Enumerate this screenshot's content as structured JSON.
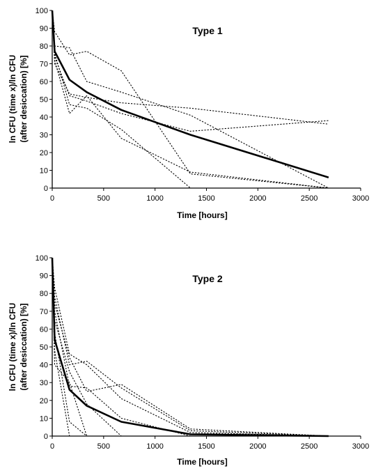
{
  "chart_data": [
    {
      "type": "line",
      "title": "Type 1",
      "xlabel": "Time [hours]",
      "ylabel": "ln CFU (time x)/ln CFU (after desiccation) [%]",
      "xlim": [
        0,
        3000
      ],
      "ylim": [
        0,
        100
      ],
      "x_ticks": [
        0,
        500,
        1000,
        1500,
        2000,
        2500,
        3000
      ],
      "y_ticks": [
        0,
        10,
        20,
        30,
        40,
        50,
        60,
        70,
        80,
        90,
        100
      ],
      "grid": false,
      "mean_series": {
        "style": "solid",
        "points": [
          [
            0,
            100
          ],
          [
            24,
            77
          ],
          [
            168,
            61
          ],
          [
            336,
            54
          ],
          [
            672,
            44
          ],
          [
            1344,
            30
          ],
          [
            2688,
            6
          ]
        ]
      },
      "strain_series": [
        {
          "style": "dotted",
          "points": [
            [
              0,
              100
            ],
            [
              24,
              88
            ],
            [
              168,
              75
            ],
            [
              336,
              77
            ],
            [
              672,
              66
            ],
            [
              1344,
              8
            ],
            [
              2688,
              0
            ]
          ]
        },
        {
          "style": "dotted",
          "points": [
            [
              0,
              100
            ],
            [
              24,
              80
            ],
            [
              168,
              79
            ],
            [
              336,
              60
            ],
            [
              672,
              54
            ],
            [
              1344,
              41
            ],
            [
              2688,
              0
            ]
          ]
        },
        {
          "style": "dotted",
          "points": [
            [
              0,
              100
            ],
            [
              24,
              76
            ],
            [
              168,
              47
            ],
            [
              336,
              45
            ],
            [
              672,
              33
            ],
            [
              1344,
              0
            ]
          ]
        },
        {
          "style": "dotted",
          "points": [
            [
              0,
              100
            ],
            [
              24,
              72
            ],
            [
              168,
              42
            ],
            [
              336,
              52
            ],
            [
              672,
              28
            ],
            [
              1344,
              9
            ],
            [
              2688,
              0
            ]
          ]
        },
        {
          "style": "dotted",
          "points": [
            [
              0,
              100
            ],
            [
              24,
              74
            ],
            [
              168,
              52
            ],
            [
              336,
              49
            ],
            [
              672,
              42
            ],
            [
              1344,
              32
            ],
            [
              2688,
              38
            ]
          ]
        },
        {
          "style": "dotted",
          "points": [
            [
              0,
              100
            ],
            [
              24,
              70
            ],
            [
              168,
              53
            ],
            [
              336,
              51
            ],
            [
              672,
              48
            ],
            [
              1344,
              45
            ],
            [
              2688,
              36
            ]
          ]
        }
      ]
    },
    {
      "type": "line",
      "title": "Type 2",
      "xlabel": "Time [hours]",
      "ylabel": "ln CFU (time x)/ln CFU (after desiccation) [%]",
      "xlim": [
        0,
        3000
      ],
      "ylim": [
        0,
        100
      ],
      "x_ticks": [
        0,
        500,
        1000,
        1500,
        2000,
        2500,
        3000
      ],
      "y_ticks": [
        0,
        10,
        20,
        30,
        40,
        50,
        60,
        70,
        80,
        90,
        100
      ],
      "grid": false,
      "mean_series": {
        "style": "solid",
        "points": [
          [
            0,
            100
          ],
          [
            24,
            54
          ],
          [
            168,
            26
          ],
          [
            336,
            17
          ],
          [
            672,
            8
          ],
          [
            1344,
            1
          ],
          [
            2688,
            0
          ]
        ]
      },
      "strain_series": [
        {
          "style": "dotted",
          "points": [
            [
              0,
              100
            ],
            [
              24,
              83
            ],
            [
              168,
              46
            ],
            [
              336,
              40
            ],
            [
              672,
              21
            ],
            [
              1344,
              2
            ],
            [
              2688,
              0
            ]
          ]
        },
        {
          "style": "dotted",
          "points": [
            [
              0,
              100
            ],
            [
              24,
              78
            ],
            [
              168,
              40
            ],
            [
              336,
              42
            ],
            [
              672,
              27
            ],
            [
              1344,
              3
            ],
            [
              2688,
              0
            ]
          ]
        },
        {
          "style": "dotted",
          "points": [
            [
              0,
              100
            ],
            [
              24,
              74
            ],
            [
              168,
              44
            ],
            [
              336,
              25
            ],
            [
              672,
              29
            ],
            [
              1344,
              4
            ],
            [
              2688,
              0
            ]
          ]
        },
        {
          "style": "dotted",
          "points": [
            [
              0,
              100
            ],
            [
              24,
              70
            ],
            [
              168,
              28
            ],
            [
              336,
              27
            ],
            [
              672,
              10
            ],
            [
              1344,
              0
            ]
          ]
        },
        {
          "style": "dotted",
          "points": [
            [
              0,
              100
            ],
            [
              24,
              65
            ],
            [
              168,
              36
            ],
            [
              336,
              18
            ],
            [
              672,
              0
            ]
          ]
        },
        {
          "style": "dotted",
          "points": [
            [
              0,
              100
            ],
            [
              24,
              58
            ],
            [
              168,
              8
            ],
            [
              336,
              0
            ]
          ]
        },
        {
          "style": "dotted",
          "points": [
            [
              0,
              100
            ],
            [
              24,
              48
            ],
            [
              168,
              0
            ]
          ]
        },
        {
          "style": "dotted",
          "points": [
            [
              0,
              100
            ],
            [
              24,
              40
            ],
            [
              168,
              30
            ],
            [
              336,
              0
            ]
          ]
        }
      ]
    }
  ]
}
